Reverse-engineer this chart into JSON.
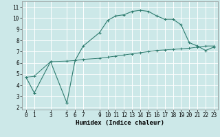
{
  "xlabel": "Humidex (Indice chaleur)",
  "line1_x": [
    0,
    1,
    3,
    5,
    5,
    6,
    7,
    9,
    10,
    11,
    12,
    13,
    14,
    15,
    16,
    17,
    18,
    19,
    20,
    21,
    22,
    23
  ],
  "line1_y": [
    4.7,
    3.3,
    6.1,
    2.4,
    2.4,
    6.2,
    7.5,
    8.7,
    9.8,
    10.2,
    10.3,
    10.6,
    10.7,
    10.6,
    10.2,
    9.9,
    9.9,
    9.4,
    7.8,
    7.5,
    7.1,
    7.4
  ],
  "line2_x": [
    0,
    1,
    3,
    5,
    6,
    7,
    9,
    10,
    11,
    12,
    13,
    14,
    15,
    16,
    17,
    18,
    19,
    20,
    21,
    22,
    23
  ],
  "line2_y": [
    4.7,
    4.8,
    6.1,
    6.15,
    6.2,
    6.3,
    6.4,
    6.5,
    6.6,
    6.7,
    6.8,
    6.9,
    7.0,
    7.1,
    7.15,
    7.2,
    7.25,
    7.3,
    7.4,
    7.5,
    7.5
  ],
  "line_color": "#2d7b6e",
  "bg_color": "#cce8e8",
  "grid_color": "#ffffff",
  "xlim": [
    -0.5,
    23.5
  ],
  "ylim": [
    1.8,
    11.5
  ],
  "yticks": [
    2,
    3,
    4,
    5,
    6,
    7,
    8,
    9,
    10,
    11
  ],
  "xticks": [
    0,
    1,
    3,
    5,
    6,
    7,
    9,
    10,
    11,
    12,
    13,
    14,
    15,
    16,
    17,
    18,
    19,
    20,
    21,
    22,
    23
  ],
  "tick_fontsize": 5.5,
  "xlabel_fontsize": 6.5
}
